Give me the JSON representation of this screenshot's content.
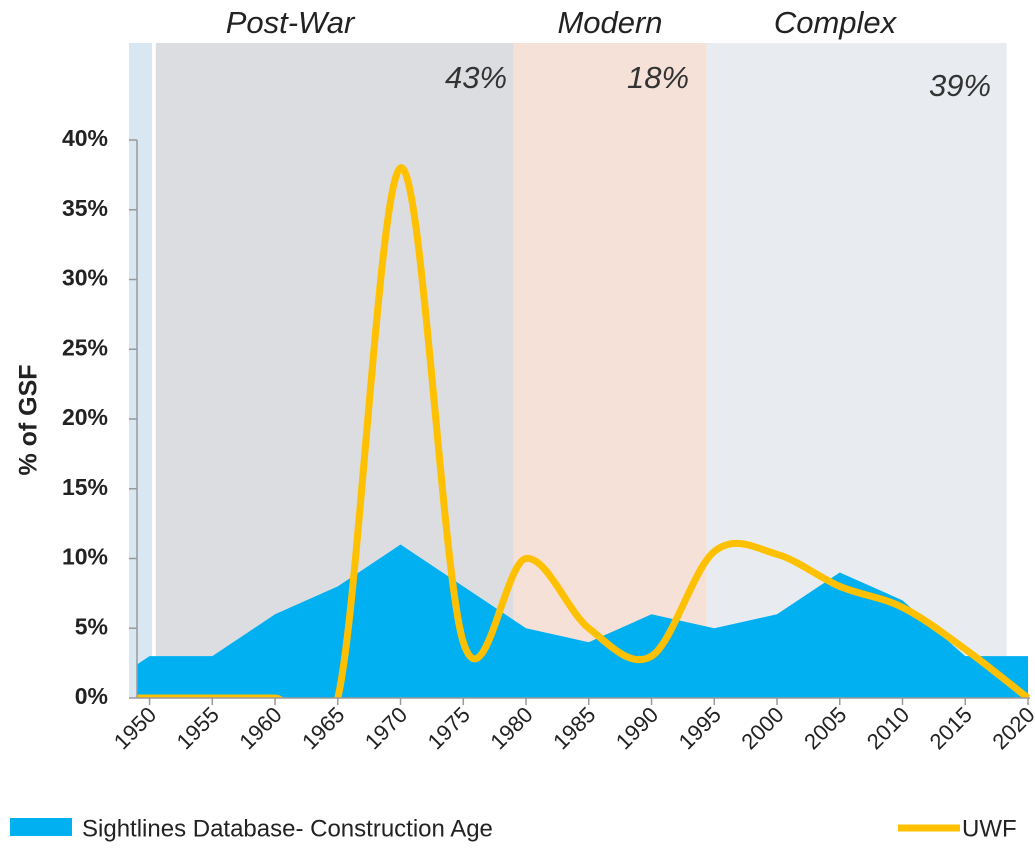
{
  "chart_data": {
    "type": "area-line",
    "y_label": "% of GSF",
    "xlim": [
      1949,
      2020
    ],
    "ylim": [
      0,
      40
    ],
    "xticks": [
      1950,
      1955,
      1960,
      1965,
      1970,
      1975,
      1980,
      1985,
      1990,
      1995,
      2000,
      2005,
      2010,
      2015,
      2020
    ],
    "yticks": [
      {
        "value": 0,
        "label": "0%"
      },
      {
        "value": 5,
        "label": "5%"
      },
      {
        "value": 10,
        "label": "10%"
      },
      {
        "value": 15,
        "label": "15%"
      },
      {
        "value": 20,
        "label": "20%"
      },
      {
        "value": 25,
        "label": "25%"
      },
      {
        "value": 30,
        "label": "30%"
      },
      {
        "value": 35,
        "label": "35%"
      },
      {
        "value": 40,
        "label": "40%"
      }
    ],
    "periods": [
      {
        "name": "Post-War",
        "share": 43,
        "share_label": "43%",
        "start": 1950.5,
        "end": 1979,
        "color": "#dcdde0"
      },
      {
        "name": "Modern",
        "share": 18,
        "share_label": "18%",
        "start": 1979,
        "end": 1994.4,
        "color": "#f6e1d9"
      },
      {
        "name": "Complex",
        "share": 39,
        "share_label": "39%",
        "start": 1994.4,
        "end": 2018.3,
        "color": "#e8ecf0"
      }
    ],
    "series": [
      {
        "name": "Sightlines Database- Construction Age",
        "kind": "area",
        "color": "#00b0f0",
        "x": [
          1949,
          1950,
          1955,
          1960,
          1965,
          1970,
          1975,
          1980,
          1985,
          1990,
          1995,
          2000,
          2005,
          2010,
          2015,
          2020
        ],
        "values": [
          2.4,
          3,
          3,
          6,
          8,
          11,
          8,
          5,
          4,
          6,
          5,
          6,
          9,
          7,
          3,
          3
        ]
      },
      {
        "name": "UWF",
        "kind": "line",
        "color": "#ffc000",
        "x": [
          1949,
          1955,
          1960,
          1965,
          1970,
          1975,
          1980,
          1985,
          1990,
          1995,
          2000,
          2005,
          2010,
          2015,
          2020
        ],
        "values": [
          0,
          0,
          0,
          0,
          38,
          4,
          10,
          5,
          3,
          10.5,
          10.3,
          8,
          6.5,
          3.5,
          0
        ]
      }
    ]
  }
}
